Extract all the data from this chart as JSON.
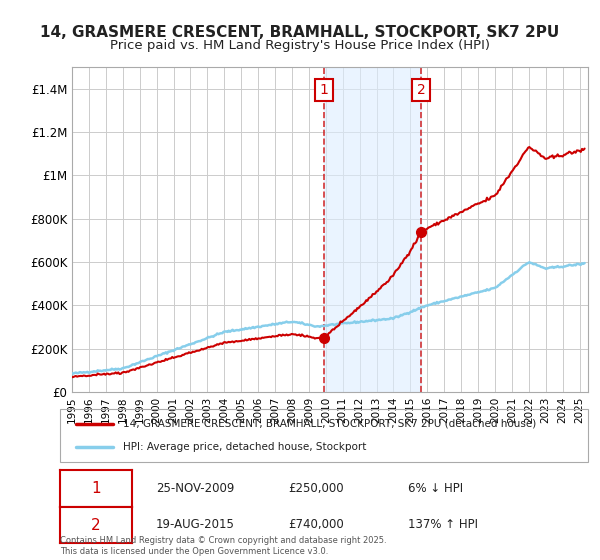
{
  "title_line1": "14, GRASMERE CRESCENT, BRAMHALL, STOCKPORT, SK7 2PU",
  "title_line2": "Price paid vs. HM Land Registry's House Price Index (HPI)",
  "background_color": "#ffffff",
  "plot_bg_color": "#ffffff",
  "grid_color": "#cccccc",
  "ylim": [
    0,
    1500000
  ],
  "yticks": [
    0,
    200000,
    400000,
    600000,
    800000,
    1000000,
    1200000,
    1400000
  ],
  "ytick_labels": [
    "£0",
    "£200K",
    "£400K",
    "£600K",
    "£800K",
    "£1M",
    "£1.2M",
    "£1.4M"
  ],
  "sale1_date_num": 2009.9,
  "sale1_price": 250000,
  "sale1_label": "1",
  "sale1_date_str": "25-NOV-2009",
  "sale1_pct": "6% ↓ HPI",
  "sale2_date_num": 2015.63,
  "sale2_price": 740000,
  "sale2_label": "2",
  "sale2_date_str": "19-AUG-2015",
  "sale2_pct": "137% ↑ HPI",
  "shade_start": 2009.9,
  "shade_end": 2015.63,
  "hpi_line_color": "#87CEEB",
  "price_line_color": "#cc0000",
  "legend_label1": "14, GRASMERE CRESCENT, BRAMHALL, STOCKPORT, SK7 2PU (detached house)",
  "legend_label2": "HPI: Average price, detached house, Stockport",
  "footnote": "Contains HM Land Registry data © Crown copyright and database right 2025.\nThis data is licensed under the Open Government Licence v3.0.",
  "xlim_start": 1995.0,
  "xlim_end": 2025.5,
  "xticks": [
    1995,
    1996,
    1997,
    1998,
    1999,
    2000,
    2001,
    2002,
    2003,
    2004,
    2005,
    2006,
    2007,
    2008,
    2009,
    2010,
    2011,
    2012,
    2013,
    2014,
    2015,
    2016,
    2017,
    2018,
    2019,
    2020,
    2021,
    2022,
    2023,
    2024,
    2025
  ]
}
